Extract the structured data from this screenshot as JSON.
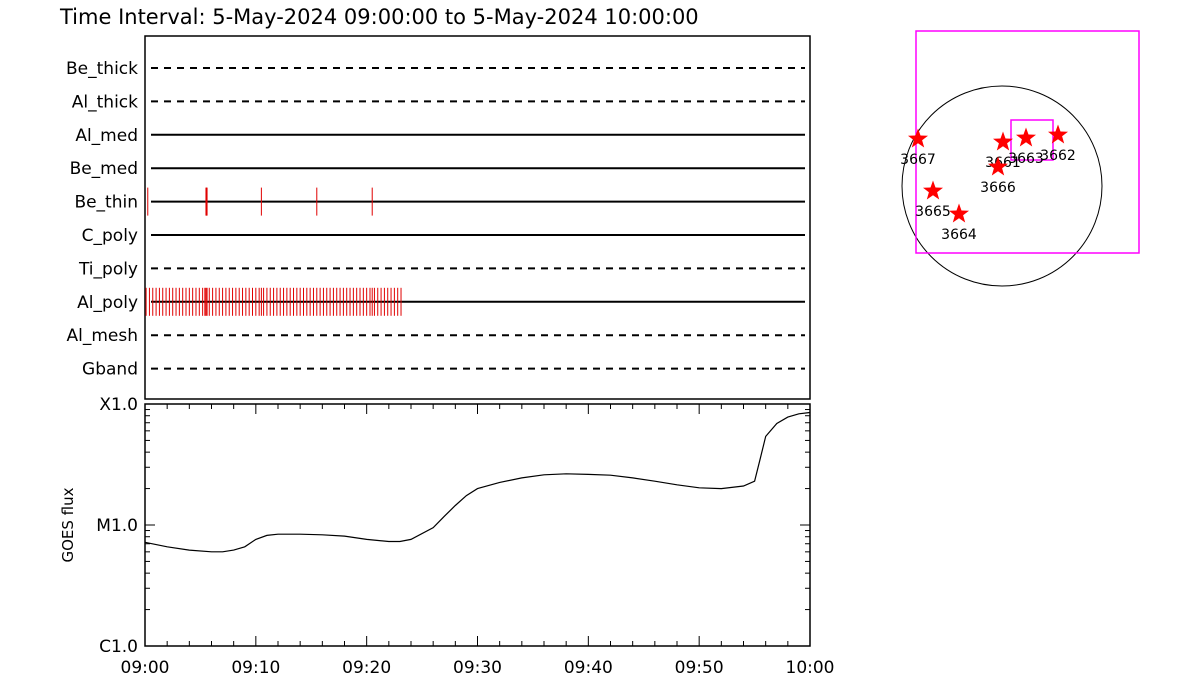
{
  "header": {
    "title": "Time Interval:  5-May-2024 09:00:00 to  5-May-2024 10:00:00"
  },
  "colors": {
    "event": "#e00000",
    "fov": "#ff00ff",
    "star": "#ff0000",
    "line": "#000000"
  },
  "chart_data": [
    {
      "type": "line",
      "name": "filter-timeline",
      "xlim": [
        "09:00",
        "10:00"
      ],
      "filters": [
        {
          "label": "Be_thick",
          "style": "dashed",
          "events": []
        },
        {
          "label": "Al_thick",
          "style": "dashed",
          "events": []
        },
        {
          "label": "Al_med",
          "style": "solid",
          "events": []
        },
        {
          "label": "Be_med",
          "style": "solid",
          "events": []
        },
        {
          "label": "Be_thin",
          "style": "solid",
          "events": [
            0.25,
            5.5,
            5.55,
            5.6,
            10.5,
            15.5,
            20.5
          ]
        },
        {
          "label": "C_poly",
          "style": "solid",
          "events": []
        },
        {
          "label": "Ti_poly",
          "style": "dashed",
          "events": []
        },
        {
          "label": "Al_poly",
          "style": "solid",
          "events": [
            0.1,
            0.4,
            0.7,
            1.0,
            1.3,
            1.6,
            1.9,
            2.2,
            2.5,
            2.8,
            3.1,
            3.4,
            3.7,
            4.0,
            4.3,
            4.6,
            4.9,
            5.2,
            5.4,
            5.5,
            5.6,
            5.8,
            6.1,
            6.4,
            6.7,
            7.0,
            7.3,
            7.6,
            7.9,
            8.2,
            8.5,
            8.8,
            9.1,
            9.4,
            9.7,
            10.0,
            10.3,
            10.5,
            10.7,
            11.0,
            11.3,
            11.6,
            11.9,
            12.2,
            12.5,
            12.8,
            13.1,
            13.4,
            13.7,
            14.0,
            14.3,
            14.6,
            14.9,
            15.2,
            15.5,
            15.8,
            16.1,
            16.4,
            16.7,
            17.0,
            17.3,
            17.6,
            17.9,
            18.2,
            18.5,
            18.8,
            19.1,
            19.4,
            19.7,
            20.0,
            20.3,
            20.5,
            20.7,
            21.0,
            21.3,
            21.6,
            21.9,
            22.2,
            22.5,
            22.8,
            23.1
          ]
        },
        {
          "label": "Al_mesh",
          "style": "dashed",
          "events": []
        },
        {
          "label": "Gband",
          "style": "dashed",
          "events": []
        }
      ]
    },
    {
      "type": "line",
      "name": "goes-flux",
      "ylabel": "GOES flux",
      "yscale": "log",
      "ylim": [
        1e-06,
        0.0001
      ],
      "y_ticklabels": [
        {
          "value": 0.0001,
          "label": "X1.0"
        },
        {
          "value": 1e-05,
          "label": "M1.0"
        },
        {
          "value": 1e-06,
          "label": "C1.0"
        }
      ],
      "x_ticklabels": [
        "09:00",
        "09:10",
        "09:20",
        "09:30",
        "09:40",
        "09:50",
        "10:00"
      ],
      "xlim": [
        0,
        60
      ],
      "series": [
        {
          "x": [
            0,
            2,
            4,
            6,
            7,
            8,
            9,
            10,
            11,
            12,
            14,
            16,
            18,
            20,
            22,
            23,
            24,
            26,
            27,
            28,
            29,
            30,
            32,
            34,
            36,
            38,
            40,
            42,
            44,
            46,
            48,
            50,
            52,
            54,
            55,
            55.5,
            56,
            57,
            58,
            59,
            60
          ],
          "y": [
            7.2e-06,
            6.6e-06,
            6.2e-06,
            6e-06,
            6e-06,
            6.2e-06,
            6.6e-06,
            7.6e-06,
            8.2e-06,
            8.4e-06,
            8.4e-06,
            8.3e-06,
            8.1e-06,
            7.6e-06,
            7.3e-06,
            7.3e-06,
            7.6e-06,
            9.5e-06,
            1.18e-05,
            1.45e-05,
            1.75e-05,
            2e-05,
            2.25e-05,
            2.45e-05,
            2.6e-05,
            2.65e-05,
            2.62e-05,
            2.58e-05,
            2.45e-05,
            2.3e-05,
            2.15e-05,
            2.03e-05,
            2e-05,
            2.1e-05,
            2.3e-05,
            3.5e-05,
            5.4e-05,
            6.9e-05,
            7.8e-05,
            8.3e-05,
            8.5e-05
          ]
        }
      ]
    },
    {
      "type": "scatter",
      "name": "solar-disk-map",
      "points": [
        {
          "label": "3667",
          "x": -0.84,
          "y": 0.47
        },
        {
          "label": "3661",
          "x": 0.01,
          "y": 0.44
        },
        {
          "label": "3663",
          "x": 0.24,
          "y": 0.48
        },
        {
          "label": "3662",
          "x": 0.56,
          "y": 0.51
        },
        {
          "label": "3666",
          "x": -0.04,
          "y": 0.19
        },
        {
          "label": "3665",
          "x": -0.69,
          "y": -0.05
        },
        {
          "label": "3664",
          "x": -0.43,
          "y": -0.28
        }
      ]
    }
  ]
}
